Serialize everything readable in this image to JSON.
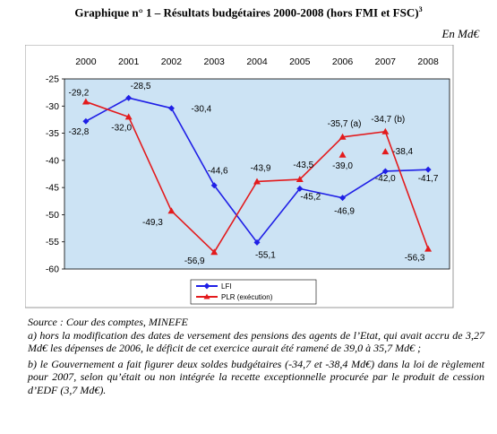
{
  "title": "Graphique n° 1 – Résultats budgétaires 2000-2008 (hors FMI et FSC)",
  "title_sup": "3",
  "unit": "En Md€",
  "chart_data": {
    "type": "line",
    "x": [
      "2000",
      "2001",
      "2002",
      "2003",
      "2004",
      "2005",
      "2006",
      "2007",
      "2008"
    ],
    "ylim": [
      -60,
      -25
    ],
    "yticks": [
      "-25",
      "-30",
      "-35",
      "-40",
      "-45",
      "-50",
      "-55",
      "-60"
    ],
    "grid": false,
    "legend_position": "bottom-center",
    "background": "#CCE3F4",
    "series": [
      {
        "name": "LFI",
        "color": "#1F1FE6",
        "marker": "diamond",
        "values": [
          -32.8,
          -28.5,
          -30.4,
          -44.6,
          -55.1,
          -45.2,
          -46.9,
          -42.0,
          -41.7
        ],
        "labels": [
          "-32,8",
          "-28,5",
          "-30,4",
          "-44,6",
          "-55,1",
          "-45,2",
          "-46,9",
          "-42,0",
          "-41,7"
        ]
      },
      {
        "name": "PLR (exécution)",
        "color": "#E31A1C",
        "marker": "triangle",
        "values": [
          -29.2,
          -32.0,
          -49.3,
          -56.9,
          -43.9,
          -43.5,
          -35.7,
          -34.7,
          -56.3
        ],
        "labels": [
          "-29,2",
          "-32,0",
          "-49,3",
          "-56,9",
          "-43,9",
          "-43,5",
          "-35,7 (a)",
          "-34,7 (b)",
          "-56,3"
        ]
      },
      {
        "name": "",
        "color": "#E31A1C",
        "marker": "triangle",
        "values": [
          null,
          null,
          null,
          null,
          null,
          null,
          -39.0,
          -38.4,
          null
        ],
        "labels": [
          "",
          "",
          "",
          "",
          "",
          "",
          "-39,0",
          "-38,4",
          ""
        ]
      }
    ]
  },
  "notes": {
    "source": "Source : Cour des comptes, MINEFE",
    "note_a": "a) hors la modification des dates de versement  des pensions des agents de l’Etat, qui avait accru de 3,27 Md€ les  dépenses de 2006, le déficit de cet exercice aurait été ramené de 39,0 à 35,7 Md€ ;",
    "note_b": "b) le Gouvernement a fait figurer deux soldes budgétaires (-34,7 et -38,4 Md€) dans la loi de règlement pour 2007, selon qu’était ou non intégrée la recette exceptionnelle procurée par le produit de cession d’EDF (3,7 Md€)."
  }
}
